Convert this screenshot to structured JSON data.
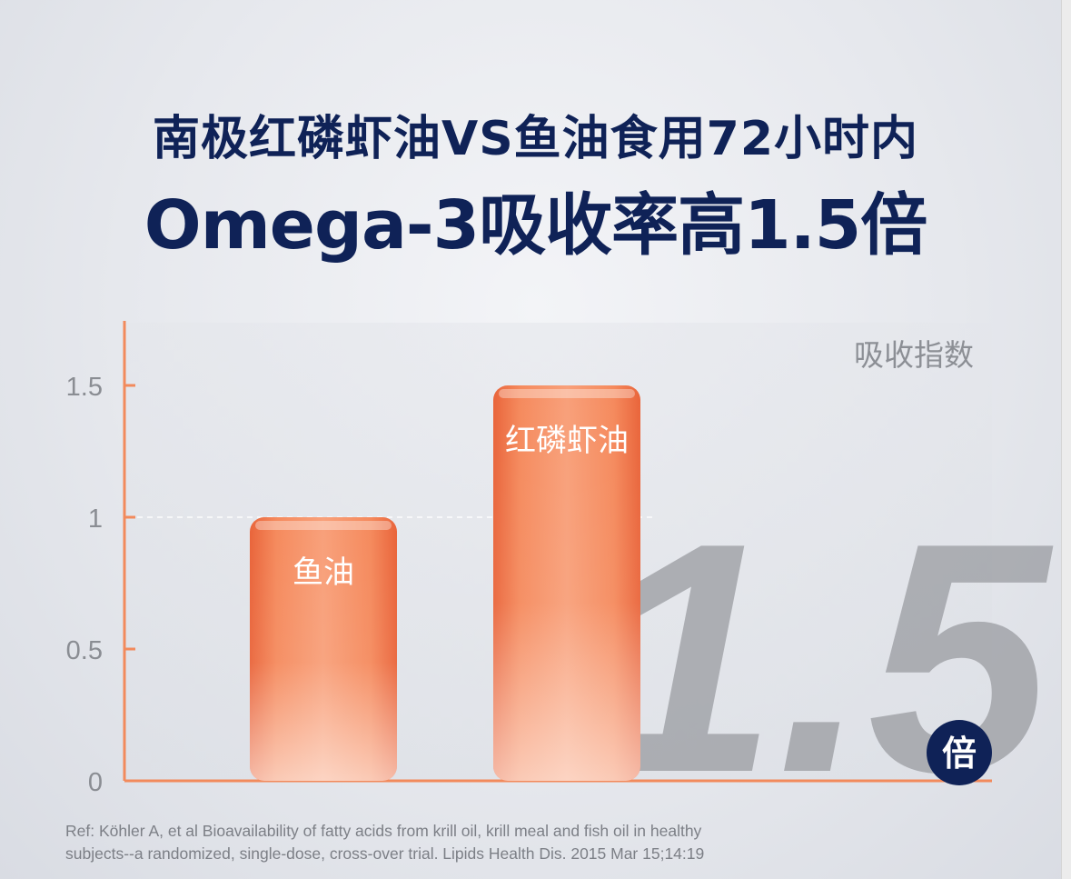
{
  "header": {
    "title_line1": "南极红磷虾油VS鱼油食用72小时内",
    "title_line2": "Omega-3吸收率高1.5倍"
  },
  "chart_data": {
    "type": "bar",
    "categories": [
      "鱼油",
      "红磷虾油"
    ],
    "values": [
      1,
      1.5
    ],
    "title": "",
    "xlabel": "",
    "ylabel": "吸收指数",
    "ylim": [
      0,
      1.5
    ],
    "yticks": [
      "0",
      "0.5",
      "1",
      "1.5"
    ],
    "ytick_values": [
      0,
      0.5,
      1,
      1.5
    ],
    "reference_line": 1,
    "grid": false,
    "bar_color": "#f07a4a",
    "axis_color": "#f28a5c",
    "highlight_number": "1.5",
    "highlight_unit": "倍",
    "badge_color": "#0f2257"
  },
  "reference": {
    "line1": "Ref: Köhler A, et al Bioavailability of fatty acids from krill oil, krill meal and fish oil in healthy",
    "line2": "subjects--a randomized, single-dose, cross-over trial. Lipids Health Dis. 2015 Mar 15;14:19"
  }
}
